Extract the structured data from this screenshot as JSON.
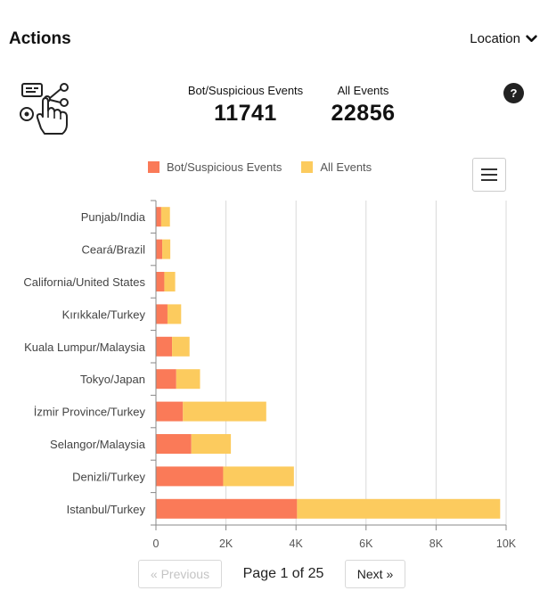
{
  "header": {
    "title": "Actions",
    "dropdown_label": "Location"
  },
  "stats": {
    "bot_label": "Bot/Suspicious Events",
    "bot_value": "11741",
    "all_label": "All Events",
    "all_value": "22856"
  },
  "help_label": "?",
  "colors": {
    "bot": "#fa7a58",
    "all": "#fccb5e",
    "grid": "#d9d9d9",
    "axis": "#888888"
  },
  "chart_data": {
    "type": "bar",
    "orientation": "horizontal",
    "stacked": true,
    "categories": [
      "Punjab/India",
      "Ceará/Brazil",
      "California/United States",
      "Kırıkkale/Turkey",
      "Kuala Lumpur/Malaysia",
      "Tokyo/Japan",
      "İzmir Province/Turkey",
      "Selangor/Malaysia",
      "Denizli/Turkey",
      "Istanbul/Turkey"
    ],
    "series": [
      {
        "name": "Bot/Suspicious Events",
        "values": [
          150,
          180,
          240,
          330,
          460,
          580,
          770,
          1010,
          1920,
          4030
        ]
      },
      {
        "name": "All Events",
        "values": [
          250,
          230,
          310,
          390,
          500,
          680,
          2380,
          1130,
          2020,
          5800
        ]
      }
    ],
    "xlim": [
      0,
      10000
    ],
    "xticks": [
      0,
      2000,
      4000,
      6000,
      8000,
      10000
    ],
    "xtick_labels": [
      "0",
      "2K",
      "4K",
      "6K",
      "8K",
      "10K"
    ],
    "grid": true,
    "legend_position": "top"
  },
  "pagination": {
    "prev_label": "« Previous",
    "page_text": "Page 1 of 25",
    "next_label": "Next »"
  }
}
